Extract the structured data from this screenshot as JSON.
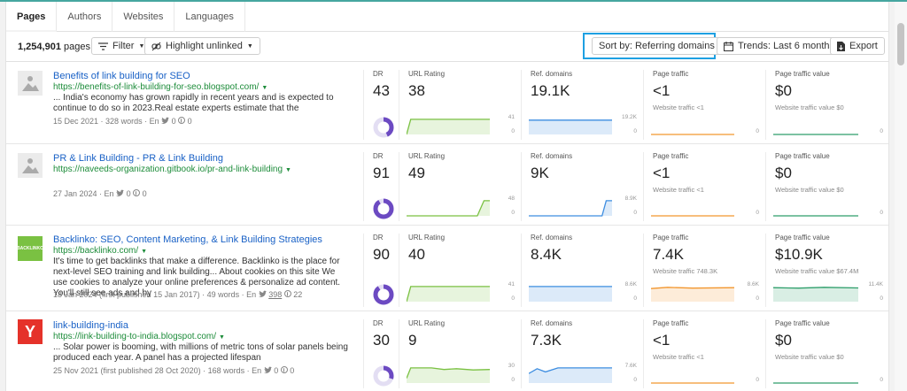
{
  "tabs": [
    "Pages",
    "Authors",
    "Websites",
    "Languages"
  ],
  "toolbar": {
    "count": "1,254,901",
    "count_suffix": "pages",
    "filter": "Filter",
    "highlight": "Highlight unlinked",
    "sort": "Sort by: Referring domains",
    "trends": "Trends: Last 6 months",
    "export": "Export"
  },
  "columns": {
    "dr": "DR",
    "ur": "URL Rating",
    "rd": "Ref. domains",
    "pt": "Page traffic",
    "ptv": "Page traffic value"
  },
  "rows": [
    {
      "title": "Benefits of link building for SEO",
      "url": "https://benefits-of-link-building-for-seo.blogspot.com/",
      "snippet": "... India's economy has grown rapidly in recent years and is expected to continue to do so in 2023.Real estate experts estimate that the",
      "date": "15 Dec 2021",
      "words": "328 words",
      "lang": "En",
      "twitter": "0",
      "pinterest": "0",
      "logo": "image-placeholder-icon",
      "dr": "43",
      "dr_value": 43,
      "ur": "38",
      "ur_max": "41",
      "ur_min": "0",
      "rd": "19.1K",
      "rd_max": "19.2K",
      "rd_min": "0",
      "pt": "<1",
      "pt_sub": "Website traffic <1",
      "pt_min": "0",
      "ptv": "$0",
      "ptv_sub": "Website traffic value $0",
      "ptv_min": "0"
    },
    {
      "title": "PR & Link Building - PR & Link Building",
      "url": "https://naveeds-organization.gitbook.io/pr-and-link-building",
      "snippet": "",
      "date": "27 Jan 2024",
      "words": "",
      "lang": "En",
      "twitter": "0",
      "pinterest": "0",
      "logo": "image-placeholder-icon",
      "dr": "91",
      "dr_value": 91,
      "ur": "49",
      "ur_max": "48",
      "ur_min": "0",
      "rd": "9K",
      "rd_max": "8.9K",
      "rd_min": "0",
      "pt": "<1",
      "pt_sub": "Website traffic <1",
      "pt_min": "0",
      "ptv": "$0",
      "ptv_sub": "Website traffic value $0",
      "ptv_min": "0"
    },
    {
      "title": "Backlinko: SEO, Content Marketing, & Link Building Strategies",
      "url": "https://backlinko.com/",
      "snippet": "It's time to get backlinks that make a difference. Backlinko is the place for next-level SEO training and link building... About cookies on this site We use cookies to analyze your online preferences & personalize ad content. You'll still see ads and by",
      "date": "18 Jan 2024 (first published 15 Jan 2017)",
      "words": "49 words",
      "lang": "En",
      "twitter": "398",
      "pinterest": "22",
      "logo": "BACKLINKO",
      "dr": "90",
      "dr_value": 90,
      "ur": "40",
      "ur_max": "41",
      "ur_min": "0",
      "rd": "8.4K",
      "rd_max": "8.6K",
      "rd_min": "0",
      "pt": "7.4K",
      "pt_sub": "Website traffic 748.3K",
      "pt_max": "8.6K",
      "pt_min": "0",
      "ptv": "$10.9K",
      "ptv_sub": "Website traffic value $67.4M",
      "ptv_max": "11.4K",
      "ptv_min": "0"
    },
    {
      "title": "link-building-india",
      "url": "https://link-building-to-india.blogspot.com/",
      "snippet": "... Solar power is booming, with millions of metric tons of solar panels being produced each year. A panel has a projected lifespan",
      "date": "25 Nov 2021 (first published 28 Oct 2020)",
      "words": "168 words",
      "lang": "En",
      "twitter": "0",
      "pinterest": "0",
      "logo": "Y",
      "dr": "30",
      "dr_value": 30,
      "ur": "9",
      "ur_max": "30",
      "ur_min": "0",
      "rd": "7.3K",
      "rd_max": "7.6K",
      "rd_min": "0",
      "pt": "<1",
      "pt_sub": "Website traffic <1",
      "pt_min": "0",
      "ptv": "$0",
      "ptv_sub": "Website traffic value $0",
      "ptv_min": "0"
    }
  ],
  "colors": {
    "link": "#1961c6",
    "url": "#1d8c3a",
    "accent": "#1ea0e2",
    "donut": "#6c4ac2",
    "ur_line": "#7ac142",
    "rd_line": "#3d8de0",
    "pt_line": "#f2962e",
    "ptv_line": "#2e9e6b"
  }
}
